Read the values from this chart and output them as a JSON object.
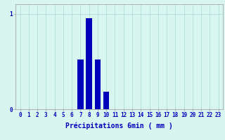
{
  "categories": [
    0,
    1,
    2,
    3,
    4,
    5,
    6,
    7,
    8,
    9,
    10,
    11,
    12,
    13,
    14,
    15,
    16,
    17,
    18,
    19,
    20,
    21,
    22,
    23
  ],
  "values": [
    0,
    0,
    0,
    0,
    0,
    0,
    0,
    0.52,
    0.95,
    0.52,
    0.18,
    0,
    0,
    0,
    0,
    0,
    0,
    0,
    0,
    0,
    0,
    0,
    0,
    0
  ],
  "bar_color": "#0000bb",
  "background_color": "#d8f5f0",
  "grid_color": "#b0ddd8",
  "axis_color": "#999999",
  "xlabel": "Précipitations 6min ( mm )",
  "ytick_labels": [
    "0",
    "1"
  ],
  "ytick_values": [
    0,
    1
  ],
  "ylim": [
    0,
    1.1
  ],
  "xlim": [
    -0.5,
    23.5
  ],
  "label_fontsize": 7,
  "tick_fontsize": 5.5
}
